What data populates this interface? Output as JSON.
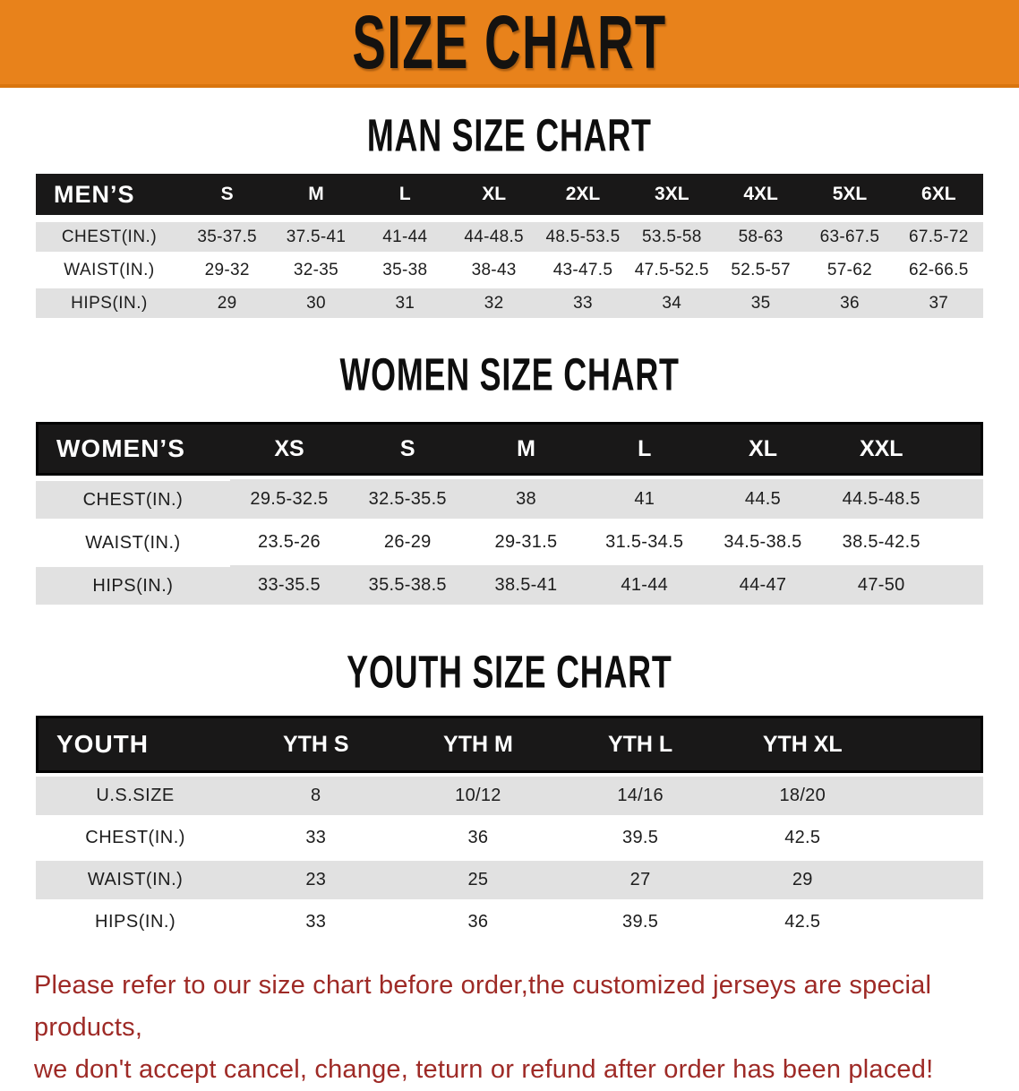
{
  "banner": {
    "title": "SIZE CHART"
  },
  "colors": {
    "banner_bg": "#E8821B",
    "table_header_bg": "#191818",
    "row_stripe": "#E1E1E1",
    "footer_text": "#9E2A26"
  },
  "sections": [
    {
      "heading": "MAN SIZE CHART",
      "corner_label": "MEN’S",
      "columns": [
        "S",
        "M",
        "L",
        "XL",
        "2XL",
        "3XL",
        "4XL",
        "5XL",
        "6XL"
      ],
      "rows": [
        {
          "label": "CHEST(IN.)",
          "values": [
            "35-37.5",
            "37.5-41",
            "41-44",
            "44-48.5",
            "48.5-53.5",
            "53.5-58",
            "58-63",
            "63-67.5",
            "67.5-72"
          ]
        },
        {
          "label": "WAIST(IN.)",
          "values": [
            "29-32",
            "32-35",
            "35-38",
            "38-43",
            "43-47.5",
            "47.5-52.5",
            "52.5-57",
            "57-62",
            "62-66.5"
          ]
        },
        {
          "label": "HIPS(IN.)",
          "values": [
            "29",
            "30",
            "31",
            "32",
            "33",
            "34",
            "35",
            "36",
            "37"
          ]
        }
      ]
    },
    {
      "heading": "WOMEN SIZE CHART",
      "corner_label": "WOMEN’S",
      "columns": [
        "XS",
        "S",
        "M",
        "L",
        "XL",
        "XXL"
      ],
      "rows": [
        {
          "label": "CHEST(IN.)",
          "values": [
            "29.5-32.5",
            "32.5-35.5",
            "38",
            "41",
            "44.5",
            "44.5-48.5"
          ]
        },
        {
          "label": "WAIST(IN.)",
          "values": [
            "23.5-26",
            "26-29",
            "29-31.5",
            "31.5-34.5",
            "34.5-38.5",
            "38.5-42.5"
          ]
        },
        {
          "label": "HIPS(IN.)",
          "values": [
            "33-35.5",
            "35.5-38.5",
            "38.5-41",
            "41-44",
            "44-47",
            "47-50"
          ]
        }
      ]
    },
    {
      "heading": "YOUTH SIZE CHART",
      "corner_label": "YOUTH",
      "columns": [
        "YTH S",
        "YTH M",
        "YTH L",
        "YTH XL"
      ],
      "rows": [
        {
          "label": "U.S.SIZE",
          "values": [
            "8",
            "10/12",
            "14/16",
            "18/20"
          ]
        },
        {
          "label": "CHEST(IN.)",
          "values": [
            "33",
            "36",
            "39.5",
            "42.5"
          ]
        },
        {
          "label": "WAIST(IN.)",
          "values": [
            "23",
            "25",
            "27",
            "29"
          ]
        },
        {
          "label": "HIPS(IN.)",
          "values": [
            "33",
            "36",
            "39.5",
            "42.5"
          ]
        }
      ]
    }
  ],
  "footer": {
    "line1": "Please refer to our size chart before order,the customized jerseys are special products,",
    "line2": "we don't accept cancel, change, teturn or refund after order has been placed!"
  }
}
